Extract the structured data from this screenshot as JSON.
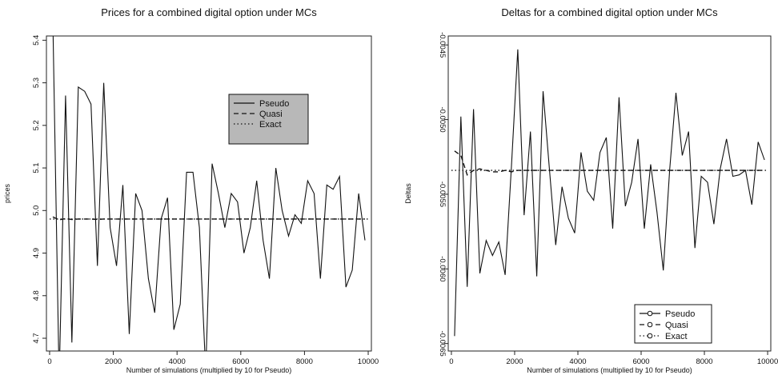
{
  "chart_data": [
    {
      "type": "line",
      "title": "Prices for a combined digital option under MCs",
      "xlabel": "Number of simulations (multiplied by 10 for Pseudo)",
      "ylabel": "prices",
      "xlim": [
        -100,
        10100
      ],
      "ylim": [
        4.67,
        5.41
      ],
      "x_ticks": [
        0,
        2000,
        4000,
        6000,
        8000,
        10000
      ],
      "y_ticks": [
        4.7,
        4.8,
        4.9,
        5.0,
        5.1,
        5.2,
        5.3,
        5.4
      ],
      "tick_labels_x": [
        "0",
        "2000",
        "4000",
        "6000",
        "8000",
        "10000"
      ],
      "tick_labels_y": [
        "4.7",
        "4.8",
        "4.9",
        "5.0",
        "5.1",
        "5.2",
        "5.3",
        "5.4"
      ],
      "legend": {
        "position": "top-right",
        "filled": true,
        "entries": [
          "Pseudo",
          "Quasi",
          "Exact"
        ]
      },
      "series": [
        {
          "name": "Pseudo",
          "style": "solid",
          "x": [
            100,
            300,
            500,
            700,
            900,
            1100,
            1300,
            1500,
            1700,
            1900,
            2100,
            2300,
            2500,
            2700,
            2900,
            3100,
            3300,
            3500,
            3700,
            3900,
            4100,
            4300,
            4500,
            4700,
            4900,
            5100,
            5300,
            5500,
            5700,
            5900,
            6100,
            6300,
            6500,
            6700,
            6900,
            7100,
            7300,
            7500,
            7700,
            7900,
            8100,
            8300,
            8500,
            8700,
            8900,
            9100,
            9300,
            9500,
            9700,
            9900
          ],
          "values": [
            5.45,
            4.6,
            5.27,
            4.69,
            5.29,
            5.28,
            5.25,
            4.87,
            5.3,
            4.96,
            4.87,
            5.06,
            4.71,
            5.04,
            5.0,
            4.84,
            4.76,
            4.98,
            5.03,
            4.72,
            4.78,
            5.09,
            5.09,
            4.96,
            4.62,
            5.11,
            5.04,
            4.96,
            5.04,
            5.02,
            4.9,
            4.96,
            5.07,
            4.93,
            4.84,
            5.1,
            5.0,
            4.94,
            4.99,
            4.97,
            5.07,
            5.04,
            4.84,
            5.06,
            5.05,
            5.08,
            4.82,
            4.86,
            5.04,
            4.93
          ]
        },
        {
          "name": "Quasi",
          "style": "dashed",
          "x": [
            100,
            300,
            500,
            700,
            900,
            1100,
            1300,
            1500,
            1700,
            1900,
            2100,
            2300,
            2500,
            2700,
            2900,
            3100,
            3300,
            3500,
            3700,
            3900,
            4100,
            4300,
            4500,
            4700,
            4900,
            5100,
            5300,
            5500,
            5700,
            5900,
            6100,
            6300,
            6500,
            6700,
            6900,
            7100,
            7300,
            7500,
            7700,
            7900,
            8100,
            8300,
            8500,
            8700,
            8900,
            9100,
            9300,
            9500,
            9700,
            9900
          ],
          "values": [
            4.985,
            4.978,
            4.981,
            4.979,
            4.98,
            4.98,
            4.98,
            4.979,
            4.98,
            4.98,
            4.98,
            4.98,
            4.98,
            4.98,
            4.98,
            4.98,
            4.98,
            4.98,
            4.98,
            4.98,
            4.98,
            4.98,
            4.98,
            4.98,
            4.98,
            4.98,
            4.98,
            4.98,
            4.98,
            4.98,
            4.98,
            4.98,
            4.98,
            4.98,
            4.98,
            4.98,
            4.98,
            4.98,
            4.98,
            4.98,
            4.98,
            4.98,
            4.98,
            4.98,
            4.98,
            4.98,
            4.98,
            4.98,
            4.98,
            4.98
          ]
        },
        {
          "name": "Exact",
          "style": "dotted",
          "x": [
            0,
            10000
          ],
          "values": [
            4.98,
            4.98
          ]
        }
      ]
    },
    {
      "type": "line",
      "title": "Deltas for a combined digital option under MCs",
      "xlabel": "Number of simulations (multiplied by 10 for Pseudo)",
      "ylabel": "Deltas",
      "xlim": [
        -100,
        10100
      ],
      "ylim": [
        -0.00655,
        -0.00444
      ],
      "x_ticks": [
        0,
        2000,
        4000,
        6000,
        8000,
        10000
      ],
      "y_ticks": [
        -0.0065,
        -0.006,
        -0.0055,
        -0.005,
        -0.0045
      ],
      "tick_labels_x": [
        "0",
        "2000",
        "4000",
        "6000",
        "8000",
        "10000"
      ],
      "tick_labels_y": [
        "-0.0065",
        "-0.0060",
        "-0.0055",
        "-0.0050",
        "-0.0045"
      ],
      "legend": {
        "position": "bottom-right",
        "filled": false,
        "entries": [
          "Pseudo",
          "Quasi",
          "Exact"
        ]
      },
      "series": [
        {
          "name": "Pseudo",
          "style": "solid",
          "x": [
            100,
            300,
            500,
            700,
            900,
            1100,
            1300,
            1500,
            1700,
            1900,
            2100,
            2300,
            2500,
            2700,
            2900,
            3100,
            3300,
            3500,
            3700,
            3900,
            4100,
            4300,
            4500,
            4700,
            4900,
            5100,
            5300,
            5500,
            5700,
            5900,
            6100,
            6300,
            6500,
            6700,
            6900,
            7100,
            7300,
            7500,
            7700,
            7900,
            8100,
            8300,
            8500,
            8700,
            8900,
            9100,
            9300,
            9500,
            9700,
            9900
          ],
          "values": [
            -0.00645,
            -0.00498,
            -0.00612,
            -0.00493,
            -0.00603,
            -0.00581,
            -0.00591,
            -0.00582,
            -0.00604,
            -0.00531,
            -0.00453,
            -0.00564,
            -0.00508,
            -0.00605,
            -0.00481,
            -0.00533,
            -0.00584,
            -0.00545,
            -0.00566,
            -0.00576,
            -0.00522,
            -0.00548,
            -0.00554,
            -0.00522,
            -0.00512,
            -0.00573,
            -0.00485,
            -0.00558,
            -0.00542,
            -0.00513,
            -0.00573,
            -0.0053,
            -0.00562,
            -0.00601,
            -0.00534,
            -0.00482,
            -0.00524,
            -0.00508,
            -0.00586,
            -0.00538,
            -0.00542,
            -0.0057,
            -0.00533,
            -0.00513,
            -0.00538,
            -0.00537,
            -0.00534,
            -0.00557,
            -0.00515,
            -0.00527
          ]
        },
        {
          "name": "Quasi",
          "style": "dashed",
          "x": [
            100,
            300,
            500,
            700,
            900,
            1100,
            1300,
            1500,
            1700,
            1900,
            2100,
            2300,
            2500,
            2700,
            2900,
            3100,
            3300,
            3500,
            3700,
            3900,
            4100,
            4300,
            4500,
            4700,
            4900,
            5100,
            5300,
            5500,
            5700,
            5900,
            6100,
            6300,
            6500,
            6700,
            6900,
            7100,
            7300,
            7500,
            7700,
            7900,
            8100,
            8300,
            8500,
            8700,
            8900,
            9100,
            9300,
            9500,
            9700,
            9900
          ],
          "values": [
            -0.00521,
            -0.00524,
            -0.00537,
            -0.00534,
            -0.00533,
            -0.00534,
            -0.00535,
            -0.00535,
            -0.00534,
            -0.00535,
            -0.00534,
            -0.00534,
            -0.00534,
            -0.00534,
            -0.00534,
            -0.00534,
            -0.00534,
            -0.00534,
            -0.00534,
            -0.00534,
            -0.00534,
            -0.00534,
            -0.00534,
            -0.00534,
            -0.00534,
            -0.00534,
            -0.00534,
            -0.00534,
            -0.00534,
            -0.00534,
            -0.00534,
            -0.00534,
            -0.00534,
            -0.00534,
            -0.00534,
            -0.00534,
            -0.00534,
            -0.00534,
            -0.00534,
            -0.00534,
            -0.00534,
            -0.00534,
            -0.00534,
            -0.00534,
            -0.00534,
            -0.00534,
            -0.00534,
            -0.00534,
            -0.00534,
            -0.00534
          ]
        },
        {
          "name": "Exact",
          "style": "dotted",
          "x": [
            0,
            10000
          ],
          "values": [
            -0.00534,
            -0.00534
          ]
        }
      ]
    }
  ]
}
